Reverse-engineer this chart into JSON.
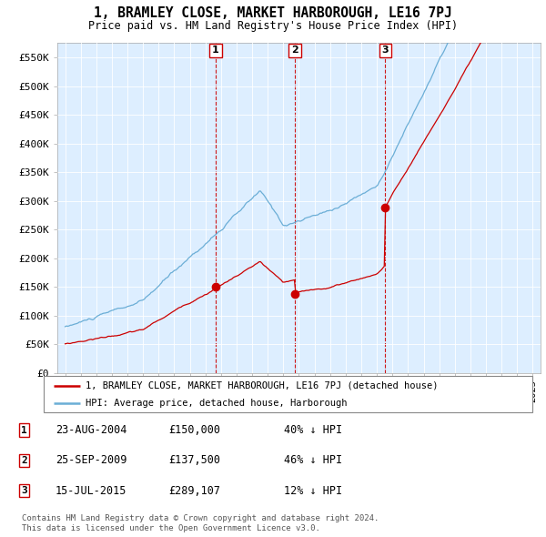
{
  "title": "1, BRAMLEY CLOSE, MARKET HARBOROUGH, LE16 7PJ",
  "subtitle": "Price paid vs. HM Land Registry's House Price Index (HPI)",
  "ylim": [
    0,
    575000
  ],
  "yticks": [
    0,
    50000,
    100000,
    150000,
    200000,
    250000,
    300000,
    350000,
    400000,
    450000,
    500000,
    550000
  ],
  "ytick_labels": [
    "£0",
    "£50K",
    "£100K",
    "£150K",
    "£200K",
    "£250K",
    "£300K",
    "£350K",
    "£400K",
    "£450K",
    "£500K",
    "£550K"
  ],
  "hpi_color": "#6baed6",
  "price_color": "#cc0000",
  "vline_color": "#cc0000",
  "background_color": "#ffffff",
  "chart_bg_color": "#ddeeff",
  "grid_color": "#ffffff",
  "sales": [
    {
      "date_num": 2004.65,
      "price": 150000,
      "label": "1"
    },
    {
      "date_num": 2009.73,
      "price": 137500,
      "label": "2"
    },
    {
      "date_num": 2015.54,
      "price": 289107,
      "label": "3"
    }
  ],
  "legend_entries": [
    "1, BRAMLEY CLOSE, MARKET HARBOROUGH, LE16 7PJ (detached house)",
    "HPI: Average price, detached house, Harborough"
  ],
  "table_rows": [
    [
      "1",
      "23-AUG-2004",
      "£150,000",
      "40% ↓ HPI"
    ],
    [
      "2",
      "25-SEP-2009",
      "£137,500",
      "46% ↓ HPI"
    ],
    [
      "3",
      "15-JUL-2015",
      "£289,107",
      "12% ↓ HPI"
    ]
  ],
  "footnote": "Contains HM Land Registry data © Crown copyright and database right 2024.\nThis data is licensed under the Open Government Licence v3.0.",
  "xlim_start": 1994.5,
  "xlim_end": 2025.5
}
